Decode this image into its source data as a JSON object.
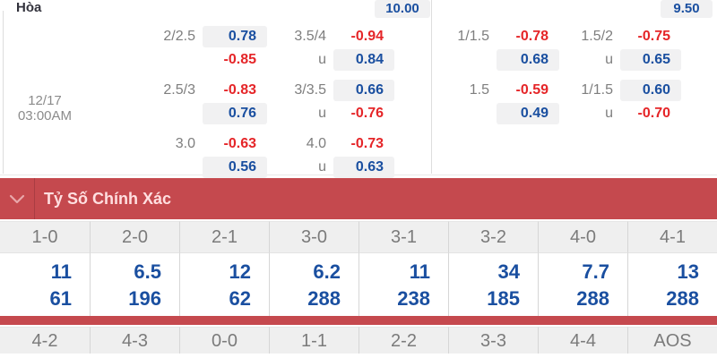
{
  "odds_table": {
    "draw_header": {
      "label": "Hòa",
      "left_value": "10.00",
      "right_value": "9.50"
    },
    "match": {
      "date": "12/17",
      "time": "03:00AM"
    },
    "left_groups": [
      {
        "cells": [
          {
            "label": "2/2.5",
            "value": "0.78",
            "positive": true
          },
          {
            "label": "3.5/4",
            "value": "-0.94",
            "positive": false
          },
          {
            "label": "",
            "value": "-0.85",
            "positive": false
          },
          {
            "label": "u",
            "value": "0.84",
            "positive": true
          }
        ]
      },
      {
        "cells": [
          {
            "label": "2.5/3",
            "value": "-0.83",
            "positive": false
          },
          {
            "label": "3/3.5",
            "value": "0.66",
            "positive": true
          },
          {
            "label": "",
            "value": "0.76",
            "positive": true
          },
          {
            "label": "u",
            "value": "-0.76",
            "positive": false
          }
        ]
      },
      {
        "cells": [
          {
            "label": "3.0",
            "value": "-0.63",
            "positive": false
          },
          {
            "label": "4.0",
            "value": "-0.73",
            "positive": false
          },
          {
            "label": "",
            "value": "0.56",
            "positive": true
          },
          {
            "label": "u",
            "value": "0.63",
            "positive": true
          }
        ]
      }
    ],
    "right_groups": [
      {
        "cells": [
          {
            "label": "1/1.5",
            "value": "-0.78",
            "positive": false
          },
          {
            "label": "1.5/2",
            "value": "-0.75",
            "positive": false
          },
          {
            "label": "",
            "value": "0.68",
            "positive": true
          },
          {
            "label": "u",
            "value": "0.65",
            "positive": true
          }
        ]
      },
      {
        "cells": [
          {
            "label": "1.5",
            "value": "-0.59",
            "positive": false
          },
          {
            "label": "1/1.5",
            "value": "0.60",
            "positive": true
          },
          {
            "label": "",
            "value": "0.49",
            "positive": true
          },
          {
            "label": "u",
            "value": "-0.70",
            "positive": false
          }
        ]
      }
    ]
  },
  "score_section": {
    "title": "Tỷ Số Chính Xác",
    "columns": [
      {
        "score": "1-0",
        "odd1": "11",
        "odd2": "61"
      },
      {
        "score": "2-0",
        "odd1": "6.5",
        "odd2": "196"
      },
      {
        "score": "2-1",
        "odd1": "12",
        "odd2": "62"
      },
      {
        "score": "3-0",
        "odd1": "6.2",
        "odd2": "288"
      },
      {
        "score": "3-1",
        "odd1": "11",
        "odd2": "238"
      },
      {
        "score": "3-2",
        "odd1": "34",
        "odd2": "185"
      },
      {
        "score": "4-0",
        "odd1": "7.7",
        "odd2": "288"
      },
      {
        "score": "4-1",
        "odd1": "13",
        "odd2": "288"
      }
    ],
    "next_scores": [
      "4-2",
      "4-3",
      "0-0",
      "1-1",
      "2-2",
      "3-3",
      "4-4",
      "AOS"
    ]
  },
  "colors": {
    "accent_red": "#c5494e",
    "odds_red": "#e52528",
    "odds_blue": "#1a4fa0",
    "box_bg": "#f1f1f2"
  }
}
